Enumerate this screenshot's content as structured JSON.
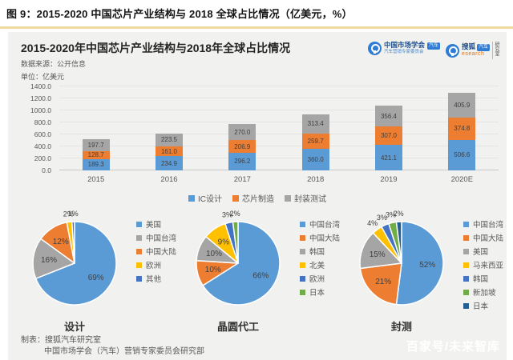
{
  "page": {
    "figure_title": "图 9：2015-2020 中国芯片产业结构与 2018 全球占比情况（亿美元，%）",
    "watermark": "百家号/未来智库"
  },
  "panel": {
    "title": "2015-2020年中国芯片产业结构与2018年全球占比情况",
    "source_label": "数据来源：公开信息",
    "unit_label": "单位：亿美元",
    "logos": {
      "cmsa_name": "中国市场学会",
      "cmsa_sub": "汽车营销专家委员会",
      "cmsa_tag": "汽车",
      "sohu_name": "搜狐",
      "sohu_tag": "汽车",
      "sohu_sub": "esearch",
      "sohu_side": "研究室"
    },
    "footer": {
      "line1": "制表：搜狐汽车研究室",
      "line2": "中国市场学会（汽车）营销专家委员会研究部"
    }
  },
  "colors": {
    "divider_orange": "#EFD9A0",
    "panel_background": "#F1F1EF",
    "series_blue": "#5B9BD5",
    "series_orange": "#ED7D31",
    "series_gray": "#A5A5A5",
    "series_yellow": "#FFC000",
    "series_dark_blue": "#4472C4",
    "series_green": "#70AD47",
    "series_navy": "#255E91",
    "logo_blue": "#2E7CD6"
  },
  "chart_data": [
    {
      "type": "bar",
      "stacked": true,
      "title": "2015-2020年中国芯片产业结构与2018年全球占比情况",
      "unit": "亿美元",
      "categories": [
        "2015",
        "2016",
        "2017",
        "2018",
        "2019",
        "2020E"
      ],
      "series": [
        {
          "name": "IC设计",
          "color": "#5B9BD5",
          "values": [
            189.3,
            234.9,
            296.2,
            360.0,
            421.1,
            506.6
          ]
        },
        {
          "name": "芯片制造",
          "color": "#ED7D31",
          "values": [
            128.7,
            161.0,
            206.9,
            259.7,
            307.0,
            374.8
          ]
        },
        {
          "name": "封装测试",
          "color": "#A5A5A5",
          "values": [
            197.7,
            223.5,
            270.0,
            313.4,
            356.4,
            405.9
          ]
        }
      ],
      "ylim": [
        0,
        1400
      ],
      "ytick_step": 200,
      "grid": true,
      "legend_position": "bottom"
    },
    {
      "type": "pie",
      "title": "设计",
      "legend_position": "right",
      "slices": [
        {
          "label": "美国",
          "value": 69,
          "color": "#5B9BD5"
        },
        {
          "label": "中国台湾",
          "value": 16,
          "color": "#A5A5A5"
        },
        {
          "label": "中国大陆",
          "value": 12,
          "color": "#ED7D31"
        },
        {
          "label": "欧洲",
          "value": 2,
          "color": "#FFC000"
        },
        {
          "label": "其他",
          "value": 1,
          "color": "#4472C4"
        }
      ]
    },
    {
      "type": "pie",
      "title": "晶圆代工",
      "legend_position": "right",
      "slices": [
        {
          "label": "中国台湾",
          "value": 66,
          "color": "#5B9BD5"
        },
        {
          "label": "中国大陆",
          "value": 10,
          "color": "#ED7D31"
        },
        {
          "label": "韩国",
          "value": 10,
          "color": "#A5A5A5"
        },
        {
          "label": "北美",
          "value": 9,
          "color": "#FFC000"
        },
        {
          "label": "欧洲",
          "value": 3,
          "color": "#4472C4"
        },
        {
          "label": "日本",
          "value": 2,
          "color": "#70AD47"
        }
      ]
    },
    {
      "type": "pie",
      "title": "封测",
      "legend_position": "right",
      "slices": [
        {
          "label": "中国台湾",
          "value": 52,
          "color": "#5B9BD5"
        },
        {
          "label": "中国大陆",
          "value": 21,
          "color": "#ED7D31"
        },
        {
          "label": "美国",
          "value": 15,
          "color": "#A5A5A5"
        },
        {
          "label": "马来西亚",
          "value": 4,
          "color": "#FFC000"
        },
        {
          "label": "韩国",
          "value": 3,
          "color": "#4472C4"
        },
        {
          "label": "新加坡",
          "value": 3,
          "color": "#70AD47"
        },
        {
          "label": "日本",
          "value": 2,
          "color": "#255E91"
        }
      ]
    }
  ]
}
